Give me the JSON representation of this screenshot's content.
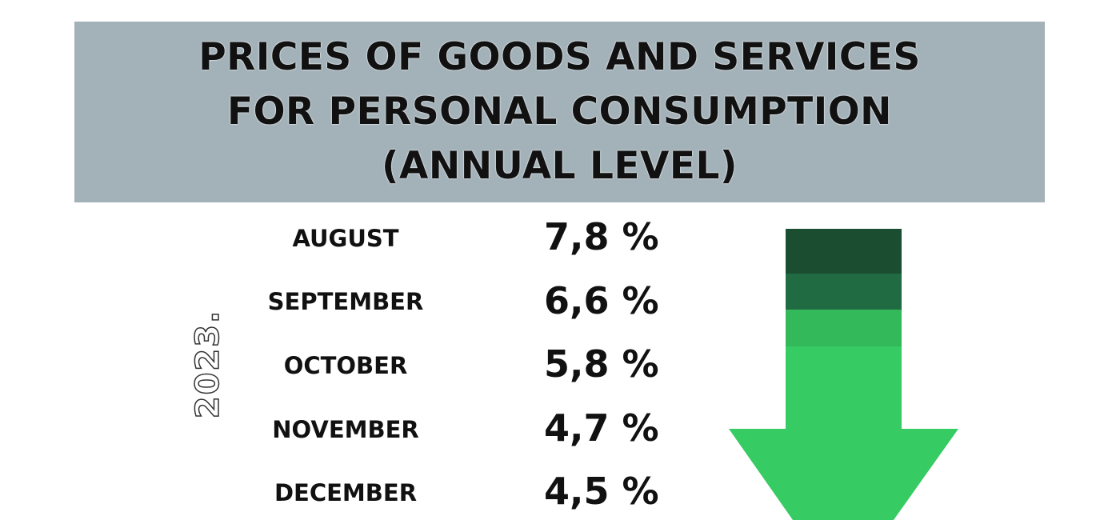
{
  "chart_data": {
    "type": "table",
    "title": [
      "PRICES OF GOODS AND SERVICES",
      "FOR PERSONAL CONSUMPTION",
      "(ANNUAL LEVEL)"
    ],
    "year_label": "2023.",
    "rows": [
      {
        "month": "AUGUST",
        "value": "7,8 %"
      },
      {
        "month": "SEPTEMBER",
        "value": "6,6 %"
      },
      {
        "month": "OCTOBER",
        "value": "5,8 %"
      },
      {
        "month": "NOVEMBER",
        "value": "4,7 %"
      },
      {
        "month": "DECEMBER",
        "value": "4,5 %"
      }
    ],
    "values_numeric": [
      7.8,
      6.6,
      5.8,
      4.7,
      4.5
    ],
    "trend_icon": "down-arrow-icon",
    "colors": {
      "header_bg": "#a3b1b8",
      "arrow_bands": [
        "#1b4d31",
        "#216b42",
        "#33b85a",
        "#37cb64"
      ]
    }
  }
}
